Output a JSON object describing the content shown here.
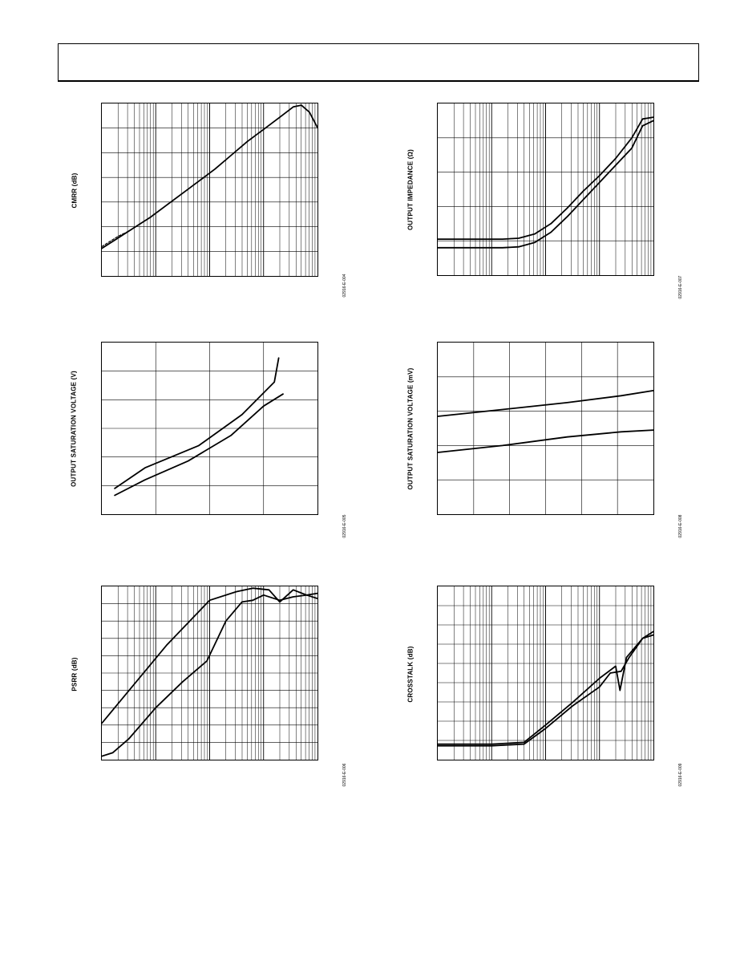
{
  "page": {
    "header_text": ""
  },
  "charts": [
    {
      "id": "cmrr",
      "y_label": "CMRR (dB)",
      "figure_id": "02916-E-004",
      "grid": "log-x",
      "chart_data": {
        "type": "line",
        "x_scale": "log",
        "x_decades": 4,
        "y_divisions": 7,
        "series": [
          {
            "style": "solid",
            "values": [
              [
                0.0,
                0.84
              ],
              [
                0.3,
                0.78
              ],
              [
                0.6,
                0.72
              ],
              [
                0.9,
                0.66
              ],
              [
                1.2,
                0.59
              ],
              [
                1.5,
                0.52
              ],
              [
                1.8,
                0.45
              ],
              [
                2.1,
                0.38
              ],
              [
                2.4,
                0.3
              ],
              [
                2.7,
                0.22
              ],
              [
                3.0,
                0.15
              ],
              [
                3.3,
                0.08
              ],
              [
                3.55,
                0.02
              ],
              [
                3.7,
                0.01
              ],
              [
                3.85,
                0.05
              ],
              [
                4.0,
                0.14
              ]
            ]
          },
          {
            "style": "dashed",
            "values": [
              [
                0.0,
                0.83
              ],
              [
                0.15,
                0.8
              ],
              [
                0.3,
                0.77
              ],
              [
                0.5,
                0.74
              ],
              [
                0.7,
                0.7
              ]
            ]
          }
        ]
      }
    },
    {
      "id": "zout",
      "y_label": "OUTPUT IMPEDANCE (Ω)",
      "figure_id": "02916-E-007",
      "grid": "log-x",
      "chart_data": {
        "type": "line",
        "x_scale": "log",
        "x_decades": 4,
        "y_divisions": 5,
        "series": [
          {
            "style": "solid",
            "values": [
              [
                0.0,
                0.79
              ],
              [
                0.6,
                0.79
              ],
              [
                1.2,
                0.79
              ],
              [
                1.5,
                0.785
              ],
              [
                1.8,
                0.76
              ],
              [
                2.1,
                0.7
              ],
              [
                2.4,
                0.61
              ],
              [
                2.7,
                0.51
              ],
              [
                3.0,
                0.42
              ],
              [
                3.3,
                0.32
              ],
              [
                3.6,
                0.2
              ],
              [
                3.8,
                0.09
              ],
              [
                4.0,
                0.08
              ]
            ]
          },
          {
            "style": "solid",
            "values": [
              [
                0.0,
                0.84
              ],
              [
                0.6,
                0.84
              ],
              [
                1.2,
                0.84
              ],
              [
                1.5,
                0.835
              ],
              [
                1.8,
                0.81
              ],
              [
                2.1,
                0.75
              ],
              [
                2.4,
                0.66
              ],
              [
                2.7,
                0.56
              ],
              [
                3.0,
                0.46
              ],
              [
                3.3,
                0.36
              ],
              [
                3.6,
                0.26
              ],
              [
                3.8,
                0.13
              ],
              [
                4.0,
                0.1
              ]
            ]
          }
        ]
      }
    },
    {
      "id": "vsat_vs_load",
      "y_label": "OUTPUT SATURATION VOLTAGE (V)",
      "figure_id": "02916-E-005",
      "grid": "linear",
      "chart_data": {
        "type": "line",
        "x_scale": "linear",
        "x_divisions": 4,
        "y_divisions": 6,
        "series": [
          {
            "style": "solid",
            "values": [
              [
                0.06,
                0.85
              ],
              [
                0.2,
                0.73
              ],
              [
                0.45,
                0.6
              ],
              [
                0.65,
                0.42
              ],
              [
                0.8,
                0.23
              ],
              [
                0.82,
                0.09
              ]
            ]
          },
          {
            "style": "solid",
            "values": [
              [
                0.06,
                0.89
              ],
              [
                0.2,
                0.8
              ],
              [
                0.4,
                0.69
              ],
              [
                0.6,
                0.54
              ],
              [
                0.75,
                0.37
              ],
              [
                0.84,
                0.3
              ]
            ]
          }
        ]
      }
    },
    {
      "id": "vsat_vs_temp",
      "y_label": "OUTPUT SATURATION VOLTAGE (mV)",
      "figure_id": "02916-E-008",
      "grid": "linear",
      "chart_data": {
        "type": "line",
        "x_scale": "linear",
        "x_divisions": 6,
        "y_divisions": 5,
        "series": [
          {
            "style": "solid",
            "values": [
              [
                0.0,
                0.43
              ],
              [
                0.3,
                0.39
              ],
              [
                0.6,
                0.35
              ],
              [
                0.85,
                0.31
              ],
              [
                1.0,
                0.28
              ]
            ]
          },
          {
            "style": "solid",
            "values": [
              [
                0.0,
                0.64
              ],
              [
                0.3,
                0.6
              ],
              [
                0.6,
                0.55
              ],
              [
                0.85,
                0.52
              ],
              [
                1.0,
                0.51
              ]
            ]
          }
        ]
      }
    },
    {
      "id": "psrr",
      "y_label": "PSRR (dB)",
      "figure_id": "02916-E-006",
      "grid": "log-x",
      "chart_data": {
        "type": "line",
        "x_scale": "log",
        "x_decades": 4,
        "y_divisions": 10,
        "series": [
          {
            "style": "solid",
            "values": [
              [
                0.0,
                0.79
              ],
              [
                0.4,
                0.64
              ],
              [
                0.8,
                0.49
              ],
              [
                1.2,
                0.34
              ],
              [
                1.6,
                0.21
              ],
              [
                2.0,
                0.08
              ],
              [
                2.5,
                0.03
              ],
              [
                2.8,
                0.01
              ],
              [
                3.1,
                0.02
              ],
              [
                3.3,
                0.09
              ],
              [
                3.55,
                0.02
              ],
              [
                3.8,
                0.05
              ],
              [
                4.0,
                0.07
              ]
            ]
          },
          {
            "style": "solid",
            "values": [
              [
                0.0,
                0.98
              ],
              [
                0.2,
                0.96
              ],
              [
                0.5,
                0.88
              ],
              [
                1.0,
                0.7
              ],
              [
                1.5,
                0.55
              ],
              [
                1.95,
                0.43
              ],
              [
                2.3,
                0.2
              ],
              [
                2.6,
                0.09
              ],
              [
                2.8,
                0.08
              ],
              [
                3.0,
                0.05
              ],
              [
                3.3,
                0.08
              ],
              [
                3.55,
                0.06
              ],
              [
                3.8,
                0.05
              ],
              [
                4.0,
                0.04
              ]
            ]
          }
        ]
      }
    },
    {
      "id": "crosstalk",
      "y_label": "CROSSTALK (dB)",
      "figure_id": "02916-E-009",
      "grid": "log-x",
      "chart_data": {
        "type": "line",
        "x_scale": "log",
        "x_decades": 4,
        "y_divisions": 9,
        "series": [
          {
            "style": "solid",
            "values": [
              [
                0.0,
                0.91
              ],
              [
                1.0,
                0.91
              ],
              [
                1.6,
                0.9
              ],
              [
                2.0,
                0.8
              ],
              [
                2.5,
                0.67
              ],
              [
                3.0,
                0.53
              ],
              [
                3.3,
                0.46
              ],
              [
                3.38,
                0.6
              ],
              [
                3.5,
                0.41
              ],
              [
                3.8,
                0.3
              ],
              [
                4.0,
                0.28
              ]
            ]
          },
          {
            "style": "solid",
            "values": [
              [
                0.0,
                0.92
              ],
              [
                1.0,
                0.92
              ],
              [
                1.6,
                0.91
              ],
              [
                2.0,
                0.82
              ],
              [
                2.5,
                0.69
              ],
              [
                3.0,
                0.58
              ],
              [
                3.2,
                0.5
              ],
              [
                3.4,
                0.49
              ],
              [
                3.55,
                0.41
              ],
              [
                3.8,
                0.3
              ],
              [
                4.0,
                0.26
              ]
            ]
          }
        ]
      }
    }
  ]
}
